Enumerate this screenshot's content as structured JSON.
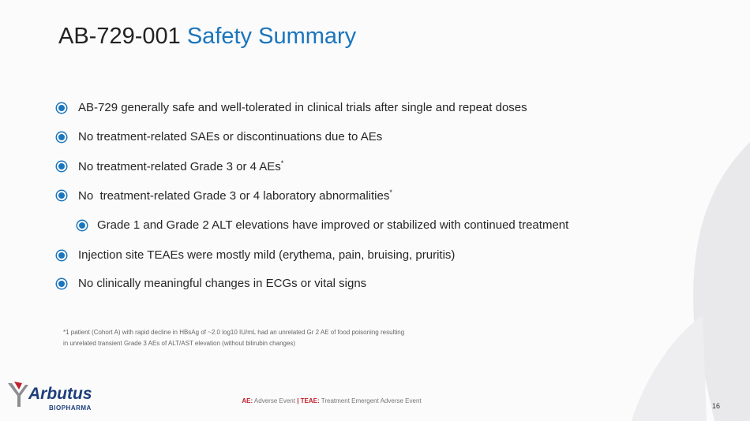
{
  "title": {
    "prefix": "AB-729-001",
    "highlight": "Safety Summary"
  },
  "bullets": [
    {
      "text": "AB-729 generally safe and well-tolerated in clinical trials after single and repeat doses"
    },
    {
      "text": "No treatment-related SAEs or discontinuations due to AEs"
    },
    {
      "text": "No treatment-related Grade 3 or 4 AEs",
      "sup": "*"
    },
    {
      "text": "No  treatment-related Grade 3 or 4 laboratory abnormalities",
      "sup": "*",
      "sub_bullets": [
        "Grade 1 and Grade 2 ALT elevations have improved or stabilized with continued treatment"
      ]
    },
    {
      "text": "Injection site TEAEs were mostly mild (erythema, pain, bruising, pruritis)"
    },
    {
      "text": "No clinically meaningful changes in ECGs or vital signs"
    }
  ],
  "footnote": [
    "*1 patient (Cohort A) with rapid decline in HBsAg of ~2.0 log10 IU/mL had an unrelated Gr 2 AE of food poisoning resulting",
    "in unrelated transient Grade 3 AEs of ALT/AST elevation (without bilirubin changes)"
  ],
  "footer": {
    "ae_label": "AE:",
    "ae_text": "Adverse Event",
    "separator": "|",
    "teae_label": "TEAE:",
    "teae_text": "Treatment Emergent Adverse Event"
  },
  "logo": {
    "name": "Arbutus",
    "tagline": "BIOPHARMA"
  },
  "page_number": "16"
}
